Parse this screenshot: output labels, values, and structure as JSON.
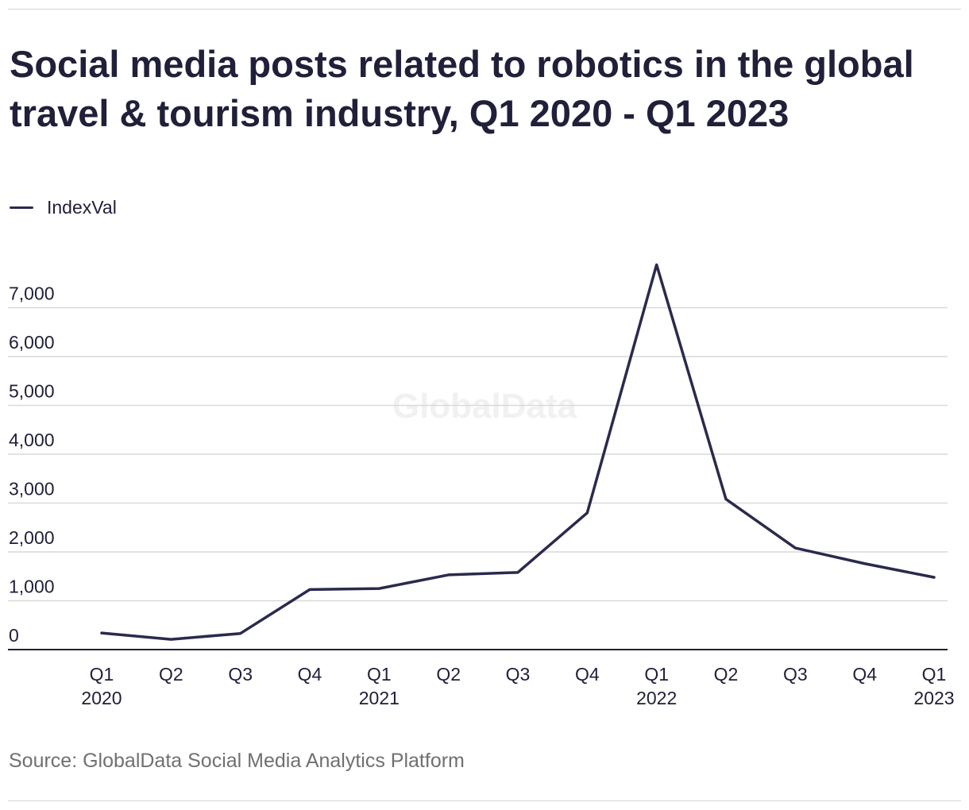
{
  "title": "Social media posts related to robotics in the global travel & tourism industry, Q1 2020 - Q1 2023",
  "source": "Source: GlobalData Social Media Analytics Platform",
  "watermark": "GlobalData",
  "colors": {
    "line": "#2a2a4e",
    "grid": "#d9d9d9",
    "text": "#20203a",
    "source": "#707070"
  },
  "chart_data": {
    "type": "line",
    "title": "Social media posts related to robotics in the global travel & tourism industry, Q1 2020 - Q1 2023",
    "xlabel": "",
    "ylabel": "",
    "categories": [
      "Q1 2020",
      "Q2",
      "Q3",
      "Q4",
      "Q1 2021",
      "Q2",
      "Q3",
      "Q4",
      "Q1 2022",
      "Q2",
      "Q3",
      "Q4",
      "Q1 2023"
    ],
    "tick_labels": [
      [
        "Q1",
        "2020"
      ],
      [
        "Q2"
      ],
      [
        "Q3"
      ],
      [
        "Q4"
      ],
      [
        "Q1",
        "2021"
      ],
      [
        "Q2"
      ],
      [
        "Q3"
      ],
      [
        "Q4"
      ],
      [
        "Q1",
        "2022"
      ],
      [
        "Q2"
      ],
      [
        "Q3"
      ],
      [
        "Q4"
      ],
      [
        "Q1",
        "2023"
      ]
    ],
    "series": [
      {
        "name": "IndexVal",
        "values": [
          340,
          210,
          330,
          1230,
          1250,
          1530,
          1580,
          2800,
          7880,
          3080,
          2080,
          1760,
          1480
        ]
      }
    ],
    "yticks": [
      0,
      1000,
      2000,
      3000,
      4000,
      5000,
      6000,
      7000
    ],
    "ytick_labels": [
      "0",
      "1,000",
      "2,000",
      "3,000",
      "4,000",
      "5,000",
      "6,000",
      "7,000"
    ],
    "ylim": [
      0,
      7000
    ],
    "grid": true,
    "legend": "top-left"
  }
}
